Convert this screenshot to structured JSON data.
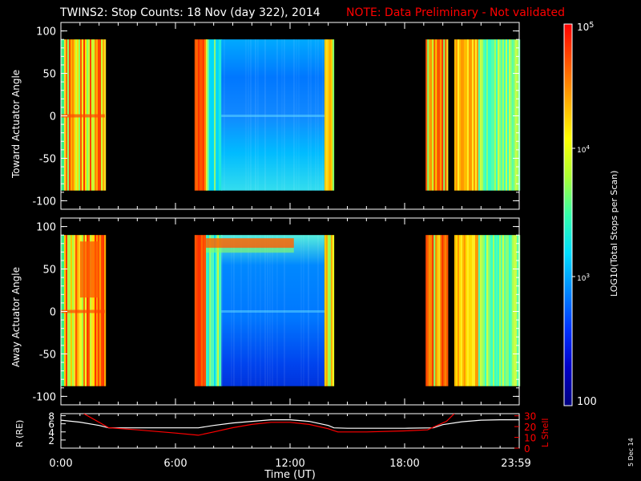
{
  "header": {
    "title": "TWINS2: Stop Counts: 18 Nov (day 322), 2014",
    "note": "NOTE: Data Preliminary - Not validated",
    "note_color": "#ff0000"
  },
  "footer": {
    "date_stamp": "5 Dec 14"
  },
  "chart_data": [
    {
      "type": "heatmap",
      "title": "",
      "ylabel": "Toward Actuator Angle",
      "xlim_hours": [
        0,
        24
      ],
      "ylim": [
        -110,
        110
      ],
      "data_ylim": [
        -88,
        90
      ],
      "y_ticks": [
        "100",
        "50",
        "0",
        "-50",
        "-100"
      ],
      "x_ticks": [
        "0:00",
        "6:00",
        "12:00",
        "18:00",
        "23:59"
      ],
      "data_time_blocks_hours": [
        [
          0.0,
          2.3
        ],
        [
          7.0,
          14.3
        ],
        [
          19.1,
          20.2
        ],
        [
          20.6,
          24.0
        ]
      ],
      "description_levels": "low (blue) 7:30-14:00, high (orange/red) near 7:00 and 19:00-20:00"
    },
    {
      "type": "heatmap",
      "title": "",
      "ylabel": "Away Actuator Angle",
      "xlim_hours": [
        0,
        24
      ],
      "ylim": [
        -110,
        110
      ],
      "data_ylim": [
        -88,
        90
      ],
      "y_ticks": [
        "100",
        "50",
        "0",
        "-50",
        "-100"
      ],
      "x_ticks": [
        "0:00",
        "6:00",
        "12:00",
        "18:00",
        "23:59"
      ],
      "data_time_blocks_hours": [
        [
          0.0,
          2.3
        ],
        [
          7.0,
          14.3
        ],
        [
          19.1,
          20.2
        ],
        [
          20.6,
          24.0
        ]
      ]
    },
    {
      "type": "line",
      "xlabel": "Time (UT)",
      "x_ticks": [
        "0:00",
        "6:00",
        "12:00",
        "18:00",
        "23:59"
      ],
      "ylabel_left": "R (RE)",
      "ylabel_right": "L Shell",
      "left_ticks": [
        "8",
        "6",
        "4",
        "2"
      ],
      "right_ticks": [
        "30",
        "20",
        "10",
        "0"
      ],
      "ylim_left": [
        0,
        8.5
      ],
      "ylim_right": [
        0,
        32
      ],
      "series": [
        {
          "name": "R (RE)",
          "color": "#ffffff",
          "x": [
            0,
            1,
            2,
            2.5,
            4,
            6,
            7.2,
            8,
            9,
            10,
            11,
            12,
            13,
            14,
            14.3,
            15,
            16,
            18,
            19.5,
            20,
            21,
            22,
            23,
            24
          ],
          "y": [
            6.9,
            6.4,
            5.6,
            5.0,
            5.0,
            5.0,
            5.0,
            5.6,
            6.2,
            6.6,
            7.0,
            7.0,
            6.6,
            5.6,
            5.0,
            4.9,
            4.9,
            4.9,
            5.0,
            5.8,
            6.5,
            6.9,
            7.0,
            7.0
          ]
        },
        {
          "name": "L Shell",
          "color": "#ff0000",
          "x": [
            1.2,
            2.5,
            4,
            6,
            7.2,
            8,
            9,
            10,
            11,
            12,
            13,
            14,
            14.5,
            16,
            18,
            19.2,
            20.2,
            20.6
          ],
          "y": [
            32,
            19,
            17,
            14,
            12,
            15,
            19,
            22,
            24,
            24,
            22,
            18,
            15,
            15,
            16,
            17,
            25,
            32
          ]
        }
      ]
    }
  ],
  "colorbar": {
    "label": "LOG10(Total Stops per Scan)",
    "ticks": [
      "10^5",
      "10^4",
      "10^3",
      "100"
    ],
    "colors": [
      "#ff0000",
      "#ff5500",
      "#ffaa00",
      "#ffff00",
      "#aaff33",
      "#33ffaa",
      "#00ddff",
      "#0088ff",
      "#0033ff",
      "#0000c8",
      "#000080"
    ]
  }
}
